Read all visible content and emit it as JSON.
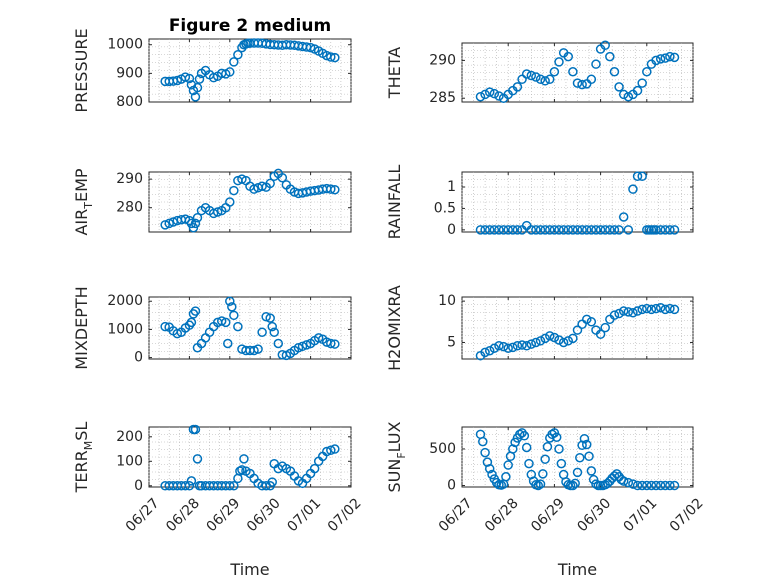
{
  "colors": {
    "series": "#0072BD",
    "axis": "#262626",
    "grid": "#b0b0b0"
  },
  "chart_data": [
    {
      "type": "scatter",
      "title": "Figure 2 medium",
      "ylabel": "PRESSURE",
      "xlabel": "",
      "xlim": [
        0,
        5
      ],
      "ylim": [
        800,
        1020
      ],
      "yticks": [
        800,
        900,
        1000
      ],
      "ytick_labels": [
        "800",
        "900",
        "1000"
      ],
      "xticks": [
        0,
        1,
        2,
        3,
        4,
        5
      ],
      "xtick_labels": [],
      "x": [
        0.4,
        0.5,
        0.6,
        0.7,
        0.8,
        0.9,
        1.0,
        1.05,
        1.1,
        1.15,
        1.2,
        1.25,
        1.3,
        1.4,
        1.5,
        1.6,
        1.7,
        1.8,
        1.9,
        2.0,
        2.1,
        2.2,
        2.3,
        2.35,
        2.4,
        2.45,
        2.5,
        2.6,
        2.7,
        2.8,
        2.9,
        3.0,
        3.1,
        3.2,
        3.3,
        3.4,
        3.5,
        3.6,
        3.7,
        3.8,
        3.9,
        4.0,
        4.1,
        4.2,
        4.3,
        4.4,
        4.5,
        4.6
      ],
      "y": [
        872,
        872,
        873,
        875,
        880,
        887,
        882,
        860,
        840,
        818,
        850,
        880,
        900,
        910,
        895,
        885,
        890,
        900,
        898,
        905,
        940,
        965,
        990,
        1000,
        1003,
        1005,
        1005,
        1006,
        1006,
        1005,
        1003,
        1001,
        1000,
        999,
        998,
        1000,
        999,
        998,
        996,
        994,
        992,
        990,
        985,
        978,
        970,
        962,
        957,
        955
      ]
    },
    {
      "type": "scatter",
      "ylabel": "THETA",
      "xlabel": "",
      "xlim": [
        0,
        5
      ],
      "ylim": [
        284.5,
        292.3
      ],
      "yticks": [
        285,
        290
      ],
      "ytick_labels": [
        "285",
        "290"
      ],
      "xticks": [
        0,
        1,
        2,
        3,
        4,
        5
      ],
      "xtick_labels": [],
      "x": [
        0.4,
        0.5,
        0.6,
        0.7,
        0.8,
        0.9,
        1.0,
        1.1,
        1.2,
        1.3,
        1.4,
        1.5,
        1.6,
        1.7,
        1.8,
        1.9,
        2.0,
        2.1,
        2.2,
        2.3,
        2.4,
        2.5,
        2.6,
        2.7,
        2.8,
        2.9,
        3.0,
        3.1,
        3.2,
        3.3,
        3.4,
        3.5,
        3.6,
        3.7,
        3.8,
        3.9,
        4.0,
        4.1,
        4.2,
        4.3,
        4.4,
        4.5,
        4.6
      ],
      "y": [
        285.2,
        285.5,
        285.8,
        285.6,
        285.3,
        285.0,
        285.5,
        286.0,
        286.5,
        287.5,
        288.2,
        288.0,
        287.8,
        287.5,
        287.3,
        287.5,
        288.5,
        289.8,
        291.0,
        290.5,
        288.5,
        287.0,
        286.8,
        286.9,
        287.5,
        289.5,
        291.5,
        292.0,
        290.5,
        288.5,
        286.5,
        285.5,
        285.2,
        285.5,
        286.0,
        287.0,
        288.5,
        289.5,
        290.0,
        290.2,
        290.3,
        290.5,
        290.4
      ]
    },
    {
      "type": "scatter",
      "ylabel": "AIR_T EMP",
      "ylabel_main": "AIR",
      "ylabel_sub": "T",
      "ylabel_rest": "EMP",
      "xlabel": "",
      "xlim": [
        0,
        5
      ],
      "ylim": [
        271.5,
        292.5
      ],
      "yticks": [
        280,
        290
      ],
      "ytick_labels": [
        "280",
        "290"
      ],
      "xticks": [
        0,
        1,
        2,
        3,
        4,
        5
      ],
      "xtick_labels": [],
      "x": [
        0.4,
        0.5,
        0.6,
        0.7,
        0.8,
        0.9,
        1.0,
        1.05,
        1.1,
        1.15,
        1.2,
        1.3,
        1.4,
        1.5,
        1.6,
        1.7,
        1.8,
        1.9,
        2.0,
        2.1,
        2.2,
        2.3,
        2.4,
        2.5,
        2.6,
        2.7,
        2.8,
        2.9,
        3.0,
        3.1,
        3.2,
        3.3,
        3.4,
        3.5,
        3.6,
        3.7,
        3.8,
        3.9,
        4.0,
        4.1,
        4.2,
        4.3,
        4.4,
        4.5,
        4.6
      ],
      "y": [
        274.0,
        274.5,
        275.0,
        275.5,
        275.8,
        276.0,
        275.5,
        274.5,
        273.0,
        274.5,
        276.5,
        279.0,
        280.0,
        279.0,
        278.0,
        278.5,
        279.0,
        280.0,
        282.0,
        286.0,
        289.5,
        290.0,
        289.5,
        287.5,
        286.5,
        287.0,
        287.5,
        287.2,
        288.5,
        291.0,
        292.0,
        290.5,
        288.0,
        286.5,
        285.5,
        285.0,
        285.2,
        285.5,
        285.8,
        286.0,
        286.2,
        286.5,
        286.7,
        286.5,
        286.3
      ]
    },
    {
      "type": "scatter",
      "ylabel": "RAINFALL",
      "xlabel": "",
      "xlim": [
        0,
        5
      ],
      "ylim": [
        -0.05,
        1.35
      ],
      "yticks": [
        0,
        0.5,
        1
      ],
      "ytick_labels": [
        "0",
        "0.5",
        "1"
      ],
      "xticks": [
        0,
        1,
        2,
        3,
        4,
        5
      ],
      "xtick_labels": [],
      "x": [
        0.4,
        0.5,
        0.6,
        0.7,
        0.8,
        0.9,
        1.0,
        1.1,
        1.2,
        1.3,
        1.4,
        1.5,
        1.6,
        1.7,
        1.8,
        1.9,
        2.0,
        2.1,
        2.2,
        2.3,
        2.4,
        2.5,
        2.6,
        2.7,
        2.8,
        2.9,
        3.0,
        3.1,
        3.2,
        3.3,
        3.4,
        3.5,
        3.6,
        3.7,
        3.8,
        3.9,
        4.0,
        4.05,
        4.1,
        4.15,
        4.2,
        4.3,
        4.4,
        4.5,
        4.6
      ],
      "y": [
        0,
        0,
        0,
        0,
        0,
        0,
        0,
        0,
        0,
        0,
        0.1,
        0,
        0,
        0,
        0,
        0,
        0,
        0,
        0,
        0,
        0,
        0,
        0,
        0,
        0,
        0,
        0,
        0,
        0,
        0,
        0,
        0.3,
        0,
        0.95,
        1.25,
        1.25,
        0,
        0,
        0,
        0,
        0,
        0,
        0,
        0,
        0
      ]
    },
    {
      "type": "scatter",
      "ylabel": "MIXDEPTH",
      "xlabel": "",
      "xlim": [
        0,
        5
      ],
      "ylim": [
        -50,
        2150
      ],
      "yticks": [
        0,
        1000,
        2000
      ],
      "ytick_labels": [
        "0",
        "1000",
        "2000"
      ],
      "xticks": [
        0,
        1,
        2,
        3,
        4,
        5
      ],
      "xtick_labels": [],
      "x": [
        0.4,
        0.5,
        0.6,
        0.7,
        0.8,
        0.9,
        1.0,
        1.05,
        1.1,
        1.15,
        1.2,
        1.3,
        1.4,
        1.5,
        1.6,
        1.7,
        1.8,
        1.9,
        1.95,
        2.0,
        2.05,
        2.1,
        2.2,
        2.3,
        2.4,
        2.5,
        2.6,
        2.7,
        2.8,
        2.9,
        3.0,
        3.05,
        3.1,
        3.2,
        3.3,
        3.4,
        3.5,
        3.6,
        3.7,
        3.8,
        3.9,
        4.0,
        4.1,
        4.2,
        4.3,
        4.4,
        4.5,
        4.6
      ],
      "y": [
        1100,
        1080,
        950,
        850,
        900,
        1050,
        1150,
        1250,
        1550,
        1650,
        350,
        500,
        700,
        900,
        1100,
        1250,
        1300,
        1250,
        500,
        2000,
        1800,
        1500,
        1100,
        300,
        250,
        250,
        250,
        300,
        900,
        1450,
        1400,
        1100,
        900,
        500,
        100,
        80,
        150,
        250,
        350,
        400,
        450,
        500,
        600,
        700,
        650,
        550,
        500,
        480
      ]
    },
    {
      "type": "scatter",
      "ylabel": "H2OMIXRA",
      "xlabel": "",
      "xlim": [
        0,
        5
      ],
      "ylim": [
        3,
        10.5
      ],
      "yticks": [
        5,
        10
      ],
      "ytick_labels": [
        "5",
        "10"
      ],
      "xticks": [
        0,
        1,
        2,
        3,
        4,
        5
      ],
      "xtick_labels": [],
      "x": [
        0.4,
        0.5,
        0.6,
        0.7,
        0.8,
        0.9,
        1.0,
        1.1,
        1.2,
        1.3,
        1.4,
        1.5,
        1.6,
        1.7,
        1.8,
        1.9,
        2.0,
        2.1,
        2.2,
        2.3,
        2.4,
        2.5,
        2.6,
        2.7,
        2.8,
        2.9,
        3.0,
        3.1,
        3.2,
        3.3,
        3.4,
        3.5,
        3.6,
        3.7,
        3.8,
        3.9,
        4.0,
        4.1,
        4.2,
        4.3,
        4.4,
        4.5,
        4.6
      ],
      "y": [
        3.4,
        3.8,
        4.0,
        4.3,
        4.6,
        4.5,
        4.3,
        4.4,
        4.6,
        4.7,
        4.6,
        4.8,
        5.0,
        5.2,
        5.5,
        5.8,
        5.6,
        5.3,
        5.0,
        5.2,
        5.5,
        6.5,
        7.2,
        7.8,
        7.5,
        6.5,
        6.0,
        6.8,
        7.8,
        8.3,
        8.5,
        8.8,
        8.7,
        8.6,
        8.8,
        9.0,
        9.1,
        9.0,
        9.1,
        9.2,
        9.0,
        9.1,
        9.0
      ]
    },
    {
      "type": "scatter",
      "ylabel": "TERR_M SL",
      "ylabel_main": "TERR",
      "ylabel_sub": "M",
      "ylabel_rest": "SL",
      "xlabel": "Time",
      "xlim": [
        0,
        5
      ],
      "ylim": [
        -5,
        240
      ],
      "yticks": [
        0,
        100,
        200
      ],
      "ytick_labels": [
        "0",
        "100",
        "200"
      ],
      "xticks": [
        0,
        1,
        2,
        3,
        4,
        5
      ],
      "xtick_labels": [
        "06/27",
        "06/28",
        "06/29",
        "06/30",
        "07/01",
        "07/02"
      ],
      "x": [
        0.4,
        0.5,
        0.6,
        0.7,
        0.8,
        0.9,
        1.0,
        1.05,
        1.1,
        1.15,
        1.2,
        1.25,
        1.3,
        1.4,
        1.5,
        1.6,
        1.7,
        1.8,
        1.9,
        2.0,
        2.1,
        2.2,
        2.25,
        2.3,
        2.35,
        2.4,
        2.5,
        2.6,
        2.7,
        2.8,
        2.9,
        3.0,
        3.05,
        3.1,
        3.2,
        3.3,
        3.4,
        3.5,
        3.6,
        3.7,
        3.8,
        3.9,
        4.0,
        4.1,
        4.2,
        4.3,
        4.4,
        4.5,
        4.6
      ],
      "y": [
        0,
        0,
        0,
        0,
        0,
        0,
        0,
        20,
        230,
        230,
        110,
        0,
        0,
        0,
        0,
        0,
        0,
        0,
        0,
        0,
        0,
        30,
        60,
        65,
        110,
        60,
        50,
        30,
        10,
        0,
        0,
        0,
        15,
        90,
        70,
        80,
        70,
        60,
        40,
        20,
        10,
        30,
        50,
        70,
        100,
        120,
        140,
        145,
        150
      ]
    },
    {
      "type": "scatter",
      "ylabel": "SUN_F LUX",
      "ylabel_main": "SUN",
      "ylabel_sub": "F",
      "ylabel_rest": "LUX",
      "xlabel": "Time",
      "xlim": [
        0,
        5
      ],
      "ylim": [
        -20,
        800
      ],
      "yticks": [
        0,
        500
      ],
      "ytick_labels": [
        "0",
        "500"
      ],
      "xticks": [
        0,
        1,
        2,
        3,
        4,
        5
      ],
      "xtick_labels": [
        "06/27",
        "06/28",
        "06/29",
        "06/30",
        "07/01",
        "07/02"
      ],
      "x": [
        0.4,
        0.45,
        0.5,
        0.55,
        0.6,
        0.65,
        0.7,
        0.75,
        0.8,
        0.85,
        0.9,
        0.95,
        1.0,
        1.05,
        1.1,
        1.15,
        1.2,
        1.25,
        1.3,
        1.35,
        1.4,
        1.45,
        1.5,
        1.55,
        1.6,
        1.65,
        1.7,
        1.75,
        1.8,
        1.85,
        1.9,
        1.95,
        2.0,
        2.05,
        2.1,
        2.15,
        2.2,
        2.25,
        2.3,
        2.35,
        2.4,
        2.45,
        2.5,
        2.55,
        2.6,
        2.65,
        2.7,
        2.75,
        2.8,
        2.85,
        2.9,
        2.95,
        3.0,
        3.05,
        3.1,
        3.15,
        3.2,
        3.25,
        3.3,
        3.35,
        3.4,
        3.45,
        3.5,
        3.6,
        3.7,
        3.8,
        3.9,
        4.0,
        4.1,
        4.2,
        4.3,
        4.4,
        4.5,
        4.6
      ],
      "y": [
        700,
        600,
        450,
        320,
        230,
        150,
        90,
        40,
        10,
        5,
        20,
        120,
        280,
        400,
        500,
        590,
        650,
        700,
        720,
        680,
        520,
        300,
        150,
        60,
        10,
        0,
        20,
        160,
        360,
        530,
        650,
        700,
        720,
        660,
        500,
        300,
        150,
        50,
        10,
        0,
        0,
        30,
        180,
        380,
        550,
        640,
        560,
        400,
        200,
        80,
        20,
        0,
        0,
        0,
        10,
        30,
        60,
        100,
        130,
        160,
        120,
        80,
        60,
        40,
        20,
        0,
        0,
        0,
        0,
        0,
        0,
        0,
        0,
        0
      ]
    }
  ]
}
